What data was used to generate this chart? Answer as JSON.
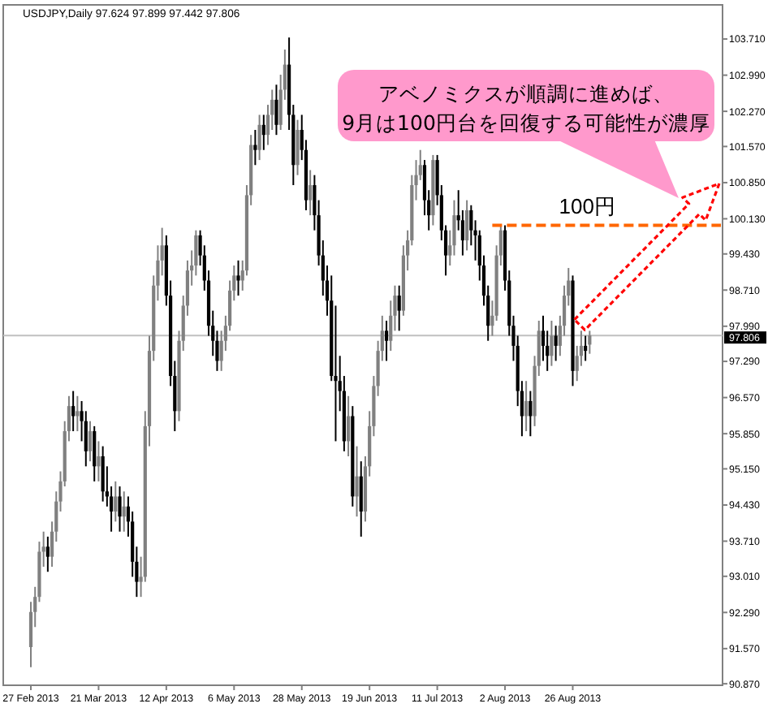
{
  "chart_data": {
    "type": "candlestick",
    "title": "USDJPY,Daily 97.624 97.899 97.442 97.806",
    "categories": [
      "27 Feb 2013",
      null,
      null,
      null,
      null,
      null,
      null,
      null,
      null,
      null,
      null,
      null,
      null,
      null,
      null,
      null,
      "21 Mar 2013",
      null,
      null,
      null,
      null,
      null,
      null,
      null,
      null,
      null,
      null,
      null,
      null,
      null,
      null,
      null,
      "12 Apr 2013",
      null,
      null,
      null,
      null,
      null,
      null,
      null,
      null,
      null,
      null,
      null,
      null,
      null,
      null,
      null,
      "6 May 2013",
      null,
      null,
      null,
      null,
      null,
      null,
      null,
      null,
      null,
      null,
      null,
      null,
      null,
      null,
      null,
      "28 May 2013",
      null,
      null,
      null,
      null,
      null,
      null,
      null,
      null,
      null,
      null,
      null,
      null,
      null,
      null,
      null,
      "19 Jun 2013",
      null,
      null,
      null,
      null,
      null,
      null,
      null,
      null,
      null,
      null,
      null,
      null,
      null,
      null,
      null,
      "11 Jul 2013",
      null,
      null,
      null,
      null,
      null,
      null,
      null,
      null,
      null,
      null,
      null,
      null,
      null,
      null,
      null,
      "2 Aug 2013",
      null,
      null,
      null,
      null,
      null,
      null,
      null,
      null,
      null,
      null,
      null,
      null,
      null,
      null,
      null,
      "26 Aug 2013",
      null,
      null,
      null,
      null,
      null,
      null,
      null,
      null,
      null,
      null,
      null,
      null,
      null,
      null,
      null,
      null,
      null,
      null,
      null,
      null,
      null,
      null,
      null,
      null,
      null,
      null,
      null,
      null,
      null,
      null,
      null,
      null,
      null,
      null,
      null
    ],
    "ohlc": [
      [
        91.6,
        92.5,
        91.2,
        92.3
      ],
      [
        92.3,
        92.8,
        92.0,
        92.6
      ],
      [
        92.6,
        93.7,
        92.5,
        93.5
      ],
      [
        93.5,
        93.9,
        93.2,
        93.6
      ],
      [
        93.6,
        93.8,
        93.1,
        93.4
      ],
      [
        93.4,
        94.1,
        93.2,
        93.9
      ],
      [
        93.9,
        94.7,
        93.7,
        94.5
      ],
      [
        94.5,
        95.1,
        94.3,
        94.9
      ],
      [
        94.9,
        96.1,
        94.8,
        95.9
      ],
      [
        95.9,
        96.6,
        95.7,
        96.4
      ],
      [
        96.4,
        96.7,
        95.9,
        96.2
      ],
      [
        96.2,
        96.6,
        95.9,
        96.3
      ],
      [
        96.3,
        96.5,
        95.7,
        96.1
      ],
      [
        96.1,
        96.3,
        95.2,
        95.5
      ],
      [
        95.5,
        96.1,
        95.3,
        95.9
      ],
      [
        95.9,
        96.0,
        94.9,
        95.2
      ],
      [
        95.2,
        95.7,
        94.9,
        95.4
      ],
      [
        95.4,
        95.6,
        94.5,
        94.7
      ],
      [
        94.7,
        95.2,
        94.4,
        94.6
      ],
      [
        94.6,
        94.8,
        93.9,
        94.3
      ],
      [
        94.3,
        94.9,
        94.1,
        94.6
      ],
      [
        94.6,
        94.8,
        93.9,
        94.2
      ],
      [
        94.2,
        94.7,
        93.9,
        94.4
      ],
      [
        94.4,
        94.6,
        93.8,
        94.1
      ],
      [
        94.1,
        94.3,
        93.0,
        93.3
      ],
      [
        93.3,
        93.6,
        92.6,
        92.9
      ],
      [
        92.9,
        93.4,
        92.6,
        93.0
      ],
      [
        93.0,
        96.3,
        92.9,
        96.0
      ],
      [
        96.0,
        97.8,
        95.6,
        97.5
      ],
      [
        97.5,
        99.0,
        97.3,
        98.8
      ],
      [
        98.8,
        99.6,
        98.5,
        99.3
      ],
      [
        99.3,
        99.95,
        99.0,
        99.6
      ],
      [
        99.6,
        99.8,
        98.4,
        98.6
      ],
      [
        98.6,
        98.9,
        96.8,
        97.0
      ],
      [
        97.0,
        97.3,
        95.9,
        96.3
      ],
      [
        96.3,
        97.9,
        96.1,
        97.7
      ],
      [
        97.7,
        98.6,
        97.5,
        98.4
      ],
      [
        98.4,
        99.3,
        98.2,
        99.1
      ],
      [
        99.1,
        99.5,
        98.8,
        99.2
      ],
      [
        99.2,
        99.9,
        99.0,
        99.8
      ],
      [
        99.8,
        99.9,
        99.2,
        99.4
      ],
      [
        99.4,
        99.6,
        98.7,
        98.9
      ],
      [
        98.9,
        99.1,
        97.8,
        98.0
      ],
      [
        98.0,
        98.3,
        97.4,
        97.7
      ],
      [
        97.7,
        97.9,
        97.1,
        97.3
      ],
      [
        97.3,
        97.9,
        97.1,
        97.7
      ],
      [
        97.7,
        98.2,
        97.5,
        98.0
      ],
      [
        98.0,
        98.9,
        97.9,
        98.7
      ],
      [
        98.7,
        99.2,
        98.5,
        99.0
      ],
      [
        99.0,
        99.3,
        98.6,
        98.9
      ],
      [
        98.9,
        99.3,
        98.7,
        99.1
      ],
      [
        99.1,
        100.8,
        99.0,
        100.6
      ],
      [
        100.6,
        101.8,
        100.4,
        101.6
      ],
      [
        101.6,
        101.9,
        101.2,
        101.5
      ],
      [
        101.5,
        102.2,
        101.3,
        102.0
      ],
      [
        102.0,
        102.2,
        101.5,
        101.8
      ],
      [
        101.8,
        102.4,
        101.6,
        102.2
      ],
      [
        102.2,
        102.7,
        101.9,
        102.5
      ],
      [
        102.5,
        102.8,
        101.8,
        102.0
      ],
      [
        102.0,
        103.0,
        101.9,
        102.7
      ],
      [
        102.7,
        103.5,
        102.5,
        103.2
      ],
      [
        103.2,
        103.74,
        101.9,
        102.2
      ],
      [
        102.2,
        102.4,
        100.8,
        101.2
      ],
      [
        101.2,
        102.1,
        101.0,
        101.9
      ],
      [
        101.9,
        102.2,
        101.3,
        101.5
      ],
      [
        101.5,
        101.7,
        100.3,
        100.5
      ],
      [
        100.5,
        101.1,
        100.2,
        100.8
      ],
      [
        100.8,
        101.0,
        99.9,
        100.2
      ],
      [
        100.2,
        100.5,
        99.2,
        99.4
      ],
      [
        99.4,
        99.7,
        98.6,
        98.9
      ],
      [
        98.9,
        99.2,
        98.2,
        98.5
      ],
      [
        98.5,
        99.0,
        96.9,
        97.0
      ],
      [
        97.0,
        98.4,
        95.7,
        96.9
      ],
      [
        96.9,
        97.4,
        96.3,
        96.7
      ],
      [
        96.7,
        97.0,
        95.5,
        95.7
      ],
      [
        95.7,
        96.6,
        95.4,
        96.2
      ],
      [
        96.2,
        96.4,
        94.4,
        94.6
      ],
      [
        94.6,
        95.6,
        94.2,
        95.0
      ],
      [
        95.0,
        95.3,
        93.8,
        94.3
      ],
      [
        94.3,
        95.4,
        94.1,
        95.2
      ],
      [
        95.2,
        96.3,
        95.0,
        96.0
      ],
      [
        96.0,
        97.0,
        95.8,
        96.8
      ],
      [
        96.8,
        97.7,
        96.6,
        97.5
      ],
      [
        97.5,
        98.2,
        97.3,
        97.9
      ],
      [
        97.9,
        98.1,
        97.3,
        97.7
      ],
      [
        97.7,
        98.5,
        97.5,
        98.2
      ],
      [
        98.2,
        98.8,
        97.9,
        98.6
      ],
      [
        98.6,
        98.8,
        97.9,
        98.3
      ],
      [
        98.3,
        99.6,
        98.2,
        99.4
      ],
      [
        99.4,
        99.9,
        99.1,
        99.7
      ],
      [
        99.7,
        101.0,
        99.6,
        100.8
      ],
      [
        100.8,
        101.3,
        100.5,
        101.0
      ],
      [
        101.0,
        101.5,
        100.9,
        101.2
      ],
      [
        101.2,
        101.3,
        100.2,
        100.5
      ],
      [
        100.5,
        100.7,
        99.9,
        100.2
      ],
      [
        100.2,
        101.4,
        100.0,
        101.3
      ],
      [
        101.3,
        101.4,
        100.4,
        100.6
      ],
      [
        100.6,
        100.8,
        99.7,
        99.9
      ],
      [
        99.9,
        100.0,
        99.0,
        99.4
      ],
      [
        99.4,
        99.9,
        99.2,
        99.6
      ],
      [
        99.6,
        100.5,
        99.4,
        100.2
      ],
      [
        100.2,
        100.7,
        99.9,
        100.1
      ],
      [
        100.1,
        100.3,
        99.4,
        99.7
      ],
      [
        99.7,
        100.5,
        99.5,
        100.3
      ],
      [
        100.3,
        100.4,
        99.6,
        99.9
      ],
      [
        99.9,
        100.1,
        99.3,
        99.8
      ],
      [
        99.8,
        99.9,
        98.9,
        99.2
      ],
      [
        99.2,
        99.4,
        98.4,
        98.6
      ],
      [
        98.6,
        98.8,
        97.7,
        98.0
      ],
      [
        98.0,
        98.5,
        97.8,
        98.2
      ],
      [
        98.2,
        99.6,
        98.1,
        99.4
      ],
      [
        99.4,
        100.0,
        99.2,
        99.9
      ],
      [
        99.9,
        100.0,
        98.7,
        98.9
      ],
      [
        98.9,
        99.1,
        97.8,
        98.0
      ],
      [
        98.0,
        98.2,
        97.3,
        97.6
      ],
      [
        97.6,
        97.8,
        96.4,
        96.7
      ],
      [
        96.7,
        96.9,
        95.8,
        96.2
      ],
      [
        96.2,
        96.9,
        95.9,
        96.5
      ],
      [
        96.5,
        96.7,
        95.8,
        96.2
      ],
      [
        96.2,
        97.4,
        96.0,
        97.2
      ],
      [
        97.2,
        98.1,
        97.0,
        97.9
      ],
      [
        97.9,
        98.2,
        97.3,
        97.6
      ],
      [
        97.6,
        97.9,
        97.1,
        97.4
      ],
      [
        97.4,
        98.1,
        97.2,
        97.8
      ],
      [
        97.8,
        98.0,
        97.3,
        97.6
      ],
      [
        97.6,
        98.2,
        97.4,
        98.0
      ],
      [
        98.0,
        98.8,
        97.8,
        98.6
      ],
      [
        98.6,
        99.15,
        98.4,
        98.9
      ],
      [
        98.9,
        99.0,
        96.8,
        97.1
      ],
      [
        97.1,
        97.6,
        96.9,
        97.4
      ],
      [
        97.4,
        97.9,
        97.2,
        97.6
      ],
      [
        97.6,
        97.8,
        97.3,
        97.5
      ],
      [
        97.624,
        97.899,
        97.442,
        97.806
      ],
      null,
      null,
      null,
      null,
      null,
      null,
      null,
      null,
      null,
      null,
      null,
      null,
      null,
      null,
      null,
      null,
      null,
      null,
      null,
      null,
      null,
      null,
      null,
      null,
      null,
      null,
      null,
      null,
      null,
      null,
      null
    ],
    "series": [
      {
        "type": "line",
        "name": "100円",
        "color": "#ff6600",
        "line_style": "dashed",
        "values": [
          null,
          null,
          null,
          null,
          null,
          null,
          null,
          null,
          null,
          null,
          null,
          null,
          null,
          null,
          null,
          null,
          null,
          null,
          null,
          null,
          null,
          null,
          null,
          null,
          null,
          null,
          null,
          null,
          null,
          null,
          null,
          null,
          null,
          null,
          null,
          null,
          null,
          null,
          null,
          null,
          null,
          null,
          null,
          null,
          null,
          null,
          null,
          null,
          null,
          null,
          null,
          null,
          null,
          null,
          null,
          null,
          null,
          null,
          null,
          null,
          null,
          null,
          null,
          null,
          null,
          null,
          null,
          null,
          null,
          null,
          null,
          null,
          null,
          null,
          null,
          null,
          null,
          null,
          null,
          null,
          null,
          null,
          null,
          null,
          null,
          null,
          null,
          null,
          null,
          null,
          null,
          null,
          null,
          null,
          null,
          null,
          null,
          null,
          null,
          null,
          null,
          null,
          null,
          null,
          null,
          null,
          null,
          null,
          null,
          100.0,
          100.0,
          100.0,
          100.0,
          100.0,
          100.0,
          100.0,
          100.0,
          100.0,
          100.0,
          100.0,
          100.0,
          100.0,
          100.0,
          100.0,
          100.0,
          100.0,
          100.0,
          100.0,
          100.0,
          100.0,
          100.0,
          100.0,
          100.0,
          100.0,
          100.0,
          100.0,
          100.0,
          100.0,
          100.0,
          100.0,
          100.0,
          100.0,
          100.0,
          100.0,
          100.0,
          100.0,
          100.0,
          100.0,
          100.0,
          100.0,
          100.0,
          100.0,
          100.0,
          100.0,
          100.0,
          100.0,
          100.0,
          100.0,
          100.0,
          100.0,
          100.0,
          100.0,
          100.0,
          100.0
        ]
      }
    ],
    "ylim": [
      90.84,
      104.39
    ],
    "yticks": [
      {
        "value": 90.87,
        "label": "90.870"
      },
      {
        "value": 91.57,
        "label": "91.570"
      },
      {
        "value": 92.29,
        "label": "92.290"
      },
      {
        "value": 93.01,
        "label": "93.010"
      },
      {
        "value": 93.71,
        "label": "93.710"
      },
      {
        "value": 94.43,
        "label": "94.430"
      },
      {
        "value": 95.15,
        "label": "95.150"
      },
      {
        "value": 95.85,
        "label": "95.850"
      },
      {
        "value": 96.57,
        "label": "96.570"
      },
      {
        "value": 97.29,
        "label": "97.290"
      },
      {
        "value": 97.99,
        "label": "97.990"
      },
      {
        "value": 98.71,
        "label": "98.710"
      },
      {
        "value": 99.43,
        "label": "99.430"
      },
      {
        "value": 100.13,
        "label": "100.130"
      },
      {
        "value": 100.85,
        "label": "100.850"
      },
      {
        "value": 101.57,
        "label": "101.570"
      },
      {
        "value": 102.27,
        "label": "102.270"
      },
      {
        "value": 102.99,
        "label": "102.990"
      },
      {
        "value": 103.71,
        "label": "103.710"
      }
    ],
    "ref_lines": [
      {
        "axis": "y",
        "value": 97.806,
        "label": "97.806",
        "color": "#c0c0c0"
      }
    ],
    "annotations": [
      "アベノミクスが順調に進めば、\n9月は100円台を回復する可能性が濃厚"
    ]
  }
}
